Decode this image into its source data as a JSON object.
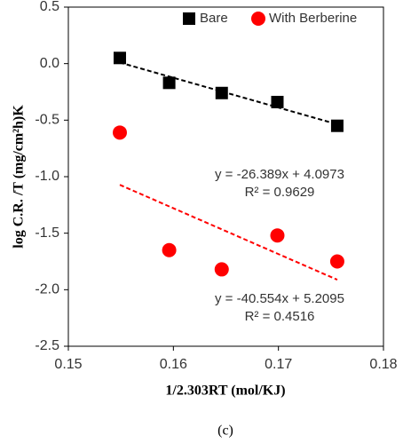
{
  "chart_data": {
    "type": "scatter",
    "caption": "(c)",
    "x_label": "1/2.303RT (mol/KJ)",
    "y_label": "log C.R. /T (mg/cm²h)K",
    "xlim": [
      0.15,
      0.18
    ],
    "xticks": [
      0.15,
      0.16,
      0.17,
      0.18
    ],
    "ylim": [
      -2.5,
      0.5
    ],
    "yticks": [
      {
        "value": -2.5,
        "label": "-2.5"
      },
      {
        "value": -2,
        "label": "-2.0"
      },
      {
        "value": -1.5,
        "label": "-1.5"
      },
      {
        "value": -1,
        "label": "-1.0"
      },
      {
        "value": -0.5,
        "label": "-0.5"
      },
      {
        "value": 0,
        "label": "0.0"
      },
      0.5
    ],
    "legend": "top",
    "series": [
      {
        "name": "Bare",
        "color": "#000000",
        "marker": "square",
        "x": [
          0.1549,
          0.1596,
          0.1646,
          0.1699,
          0.1756
        ],
        "values": [
          0.05,
          -0.17,
          -0.26,
          -0.34,
          -0.55
        ],
        "trendline": {
          "slope": -26.389,
          "intercept": 4.0973,
          "equation": "y = -26.389x + 4.0973",
          "r2": "R² = 0.9629"
        }
      },
      {
        "name": "With Berberine",
        "color": "#ff0000",
        "marker": "circle",
        "x": [
          0.1549,
          0.1596,
          0.1646,
          0.1699,
          0.1756
        ],
        "values": [
          -0.61,
          -1.65,
          -1.82,
          -1.52,
          -1.75
        ],
        "trendline": {
          "slope": -40.554,
          "intercept": 5.2095,
          "equation": "y = -40.554x + 5.2095",
          "r2": "R² = 0.4516"
        }
      }
    ]
  }
}
